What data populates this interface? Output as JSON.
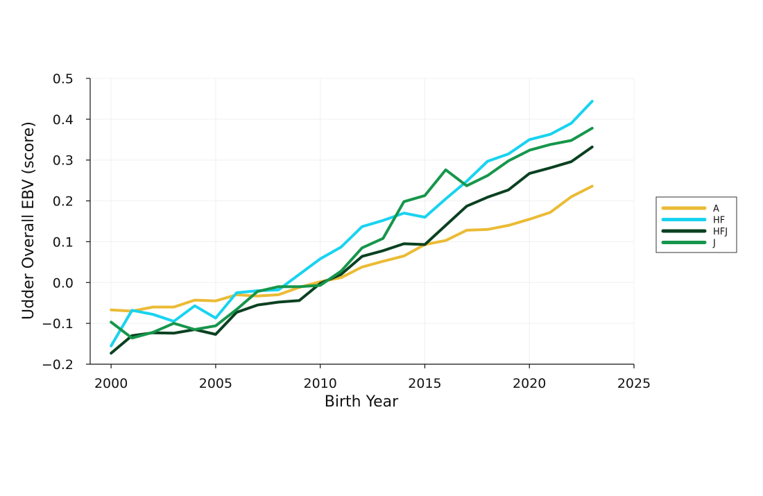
{
  "chart_data": {
    "type": "line",
    "title": "",
    "xlabel": "Birth Year",
    "ylabel": "Udder Overall EBV (score)",
    "xlim": [
      1999,
      2025
    ],
    "ylim": [
      -0.2,
      0.5
    ],
    "xticks": [
      2000,
      2005,
      2010,
      2015,
      2020,
      2025
    ],
    "xtick_labels": [
      "2000",
      "2005",
      "2010",
      "2015",
      "2020",
      "2025"
    ],
    "yticks": [
      -0.2,
      -0.1,
      0.0,
      0.1,
      0.2,
      0.3,
      0.4,
      0.5
    ],
    "ytick_labels": [
      "−0.2",
      "−0.1",
      "0.0",
      "0.1",
      "0.2",
      "0.3",
      "0.4",
      "0.5"
    ],
    "grid": true,
    "legend_position": "right",
    "x": [
      2000,
      2001,
      2002,
      2003,
      2004,
      2005,
      2006,
      2007,
      2008,
      2009,
      2010,
      2011,
      2012,
      2013,
      2014,
      2015,
      2016,
      2017,
      2018,
      2019,
      2020,
      2021,
      2022,
      2023
    ],
    "series": [
      {
        "name": "A",
        "color": "#ebbb35",
        "values": [
          -0.067,
          -0.07,
          -0.06,
          -0.06,
          -0.043,
          -0.045,
          -0.03,
          -0.033,
          -0.03,
          -0.012,
          0.002,
          0.012,
          0.038,
          0.052,
          0.065,
          0.093,
          0.103,
          0.128,
          0.13,
          0.14,
          0.155,
          0.172,
          0.21,
          0.236
        ]
      },
      {
        "name": "HF",
        "color": "#18d3f0",
        "values": [
          -0.155,
          -0.068,
          -0.078,
          -0.095,
          -0.057,
          -0.087,
          -0.025,
          -0.02,
          -0.018,
          0.02,
          0.058,
          0.087,
          0.137,
          0.152,
          0.17,
          0.16,
          0.205,
          0.248,
          0.297,
          0.315,
          0.35,
          0.363,
          0.39,
          0.444
        ]
      },
      {
        "name": "HFJ",
        "color": "#0a4121",
        "values": [
          -0.173,
          -0.13,
          -0.123,
          -0.124,
          -0.115,
          -0.127,
          -0.073,
          -0.055,
          -0.048,
          -0.044,
          -0.002,
          0.02,
          0.064,
          0.078,
          0.095,
          0.093,
          0.14,
          0.187,
          0.209,
          0.227,
          0.267,
          0.281,
          0.296,
          0.332
        ]
      },
      {
        "name": "J",
        "color": "#16964b",
        "values": [
          -0.097,
          -0.136,
          -0.122,
          -0.1,
          -0.115,
          -0.106,
          -0.066,
          -0.022,
          -0.01,
          -0.01,
          -0.007,
          0.028,
          0.085,
          0.108,
          0.198,
          0.213,
          0.276,
          0.237,
          0.262,
          0.298,
          0.324,
          0.338,
          0.348,
          0.378
        ]
      }
    ]
  }
}
